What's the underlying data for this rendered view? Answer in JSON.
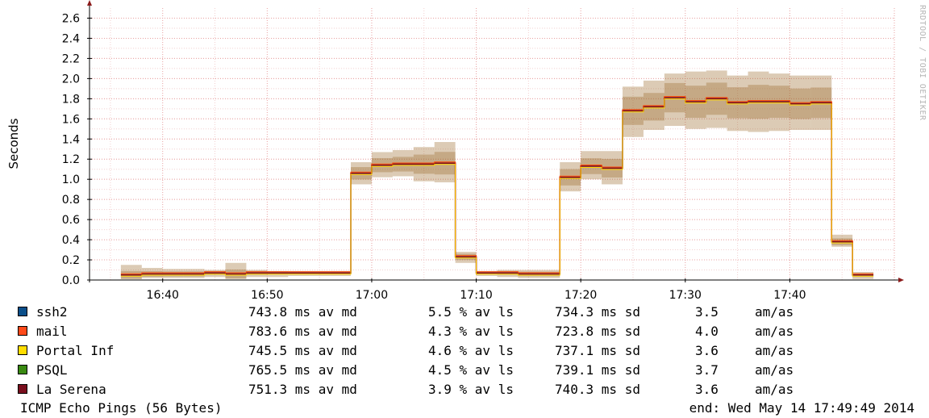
{
  "chart_data": {
    "type": "line",
    "ylabel": "Seconds",
    "ylim": [
      0,
      2.7
    ],
    "yticks": [
      0.0,
      0.2,
      0.4,
      0.6,
      0.8,
      1.0,
      1.2,
      1.4,
      1.6,
      1.8,
      2.0,
      2.2,
      2.4,
      2.6
    ],
    "ytick_labels": [
      "0.0",
      "0.2",
      "0.4",
      "0.6",
      "0.8",
      "1.0",
      "1.2",
      "1.4",
      "1.6",
      "1.8",
      "2.0",
      "2.2",
      "2.4",
      "2.6"
    ],
    "x_unit": "minutes",
    "xlim": [
      "16:33",
      "17:50"
    ],
    "xticks": [
      "16:40",
      "16:50",
      "17:00",
      "17:10",
      "17:20",
      "17:30",
      "17:40"
    ],
    "grid": true,
    "intervals": [
      {
        "start": "16:36",
        "end": "16:38",
        "median": 0.05,
        "low": 0.01,
        "high": 0.15
      },
      {
        "start": "16:38",
        "end": "16:40",
        "median": 0.06,
        "low": 0.02,
        "high": 0.12
      },
      {
        "start": "16:40",
        "end": "16:42",
        "median": 0.06,
        "low": 0.02,
        "high": 0.11
      },
      {
        "start": "16:42",
        "end": "16:44",
        "median": 0.06,
        "low": 0.02,
        "high": 0.11
      },
      {
        "start": "16:44",
        "end": "16:46",
        "median": 0.07,
        "low": 0.03,
        "high": 0.1
      },
      {
        "start": "16:46",
        "end": "16:48",
        "median": 0.06,
        "low": 0.01,
        "high": 0.17
      },
      {
        "start": "16:48",
        "end": "16:50",
        "median": 0.07,
        "low": 0.03,
        "high": 0.1
      },
      {
        "start": "16:50",
        "end": "16:52",
        "median": 0.07,
        "low": 0.03,
        "high": 0.09
      },
      {
        "start": "16:52",
        "end": "16:54",
        "median": 0.07,
        "low": 0.04,
        "high": 0.09
      },
      {
        "start": "16:54",
        "end": "16:56",
        "median": 0.07,
        "low": 0.04,
        "high": 0.09
      },
      {
        "start": "16:56",
        "end": "16:58",
        "median": 0.07,
        "low": 0.04,
        "high": 0.09
      },
      {
        "start": "16:58",
        "end": "17:00",
        "median": 1.06,
        "low": 0.95,
        "high": 1.17
      },
      {
        "start": "17:00",
        "end": "17:02",
        "median": 1.14,
        "low": 1.02,
        "high": 1.27
      },
      {
        "start": "17:02",
        "end": "17:04",
        "median": 1.15,
        "low": 1.03,
        "high": 1.29
      },
      {
        "start": "17:04",
        "end": "17:06",
        "median": 1.15,
        "low": 0.98,
        "high": 1.32
      },
      {
        "start": "17:06",
        "end": "17:08",
        "median": 1.16,
        "low": 0.97,
        "high": 1.37
      },
      {
        "start": "17:08",
        "end": "17:10",
        "median": 0.23,
        "low": 0.17,
        "high": 0.28
      },
      {
        "start": "17:10",
        "end": "17:12",
        "median": 0.07,
        "low": 0.04,
        "high": 0.09
      },
      {
        "start": "17:12",
        "end": "17:14",
        "median": 0.07,
        "low": 0.03,
        "high": 0.1
      },
      {
        "start": "17:14",
        "end": "17:16",
        "median": 0.06,
        "low": 0.02,
        "high": 0.1
      },
      {
        "start": "17:16",
        "end": "17:18",
        "median": 0.06,
        "low": 0.02,
        "high": 0.1
      },
      {
        "start": "17:18",
        "end": "17:20",
        "median": 1.02,
        "low": 0.88,
        "high": 1.17
      },
      {
        "start": "17:20",
        "end": "17:22",
        "median": 1.13,
        "low": 1.0,
        "high": 1.28
      },
      {
        "start": "17:22",
        "end": "17:24",
        "median": 1.11,
        "low": 0.95,
        "high": 1.28
      },
      {
        "start": "17:24",
        "end": "17:26",
        "median": 1.68,
        "low": 1.42,
        "high": 1.92
      },
      {
        "start": "17:26",
        "end": "17:28",
        "median": 1.72,
        "low": 1.49,
        "high": 1.98
      },
      {
        "start": "17:28",
        "end": "17:30",
        "median": 1.81,
        "low": 1.53,
        "high": 2.05
      },
      {
        "start": "17:30",
        "end": "17:32",
        "median": 1.77,
        "low": 1.5,
        "high": 2.07
      },
      {
        "start": "17:32",
        "end": "17:34",
        "median": 1.8,
        "low": 1.51,
        "high": 2.08
      },
      {
        "start": "17:34",
        "end": "17:36",
        "median": 1.76,
        "low": 1.48,
        "high": 2.03
      },
      {
        "start": "17:36",
        "end": "17:38",
        "median": 1.77,
        "low": 1.47,
        "high": 2.07
      },
      {
        "start": "17:38",
        "end": "17:40",
        "median": 1.77,
        "low": 1.48,
        "high": 2.05
      },
      {
        "start": "17:40",
        "end": "17:42",
        "median": 1.75,
        "low": 1.49,
        "high": 2.03
      },
      {
        "start": "17:42",
        "end": "17:44",
        "median": 1.76,
        "low": 1.49,
        "high": 2.03
      },
      {
        "start": "17:44",
        "end": "17:46",
        "median": 0.38,
        "low": 0.33,
        "high": 0.45
      },
      {
        "start": "17:46",
        "end": "17:48",
        "median": 0.05,
        "low": 0.01,
        "high": 0.08
      }
    ],
    "band_color": "#9b6b2a",
    "median_colors": [
      "#7a0f1e",
      "#ff4500",
      "#ffd700"
    ],
    "series": [
      {
        "name": "ssh2",
        "color": "#0b4f8a",
        "median": "743.8 ms av md",
        "loss": "5.5 % av ls",
        "sd": "734.3 ms sd",
        "amas": "3.5",
        "amas_unit": "am/as"
      },
      {
        "name": "mail",
        "color": "#ff4a1a",
        "median": "783.6 ms av md",
        "loss": "4.3 % av ls",
        "sd": "723.8 ms sd",
        "amas": "4.0",
        "amas_unit": "am/as"
      },
      {
        "name": "Portal Inf",
        "color": "#ffdd00",
        "median": "745.5 ms av md",
        "loss": "4.6 % av ls",
        "sd": "737.1 ms sd",
        "amas": "3.6",
        "amas_unit": "am/as"
      },
      {
        "name": "PSQL",
        "color": "#3a8a12",
        "median": "765.5 ms av md",
        "loss": "4.5 % av ls",
        "sd": "739.1 ms sd",
        "amas": "3.7",
        "amas_unit": "am/as"
      },
      {
        "name": "La Serena",
        "color": "#7a0f1e",
        "median": "751.3 ms av md",
        "loss": "3.9 % av ls",
        "sd": "740.3 ms sd",
        "amas": "3.6",
        "amas_unit": "am/as"
      }
    ]
  },
  "footer": {
    "title": "ICMP Echo Pings (56 Bytes)",
    "end": "end: Wed May 14 17:49:49 2014"
  },
  "watermark": "RRDTOOL / TOBI OETIKER"
}
